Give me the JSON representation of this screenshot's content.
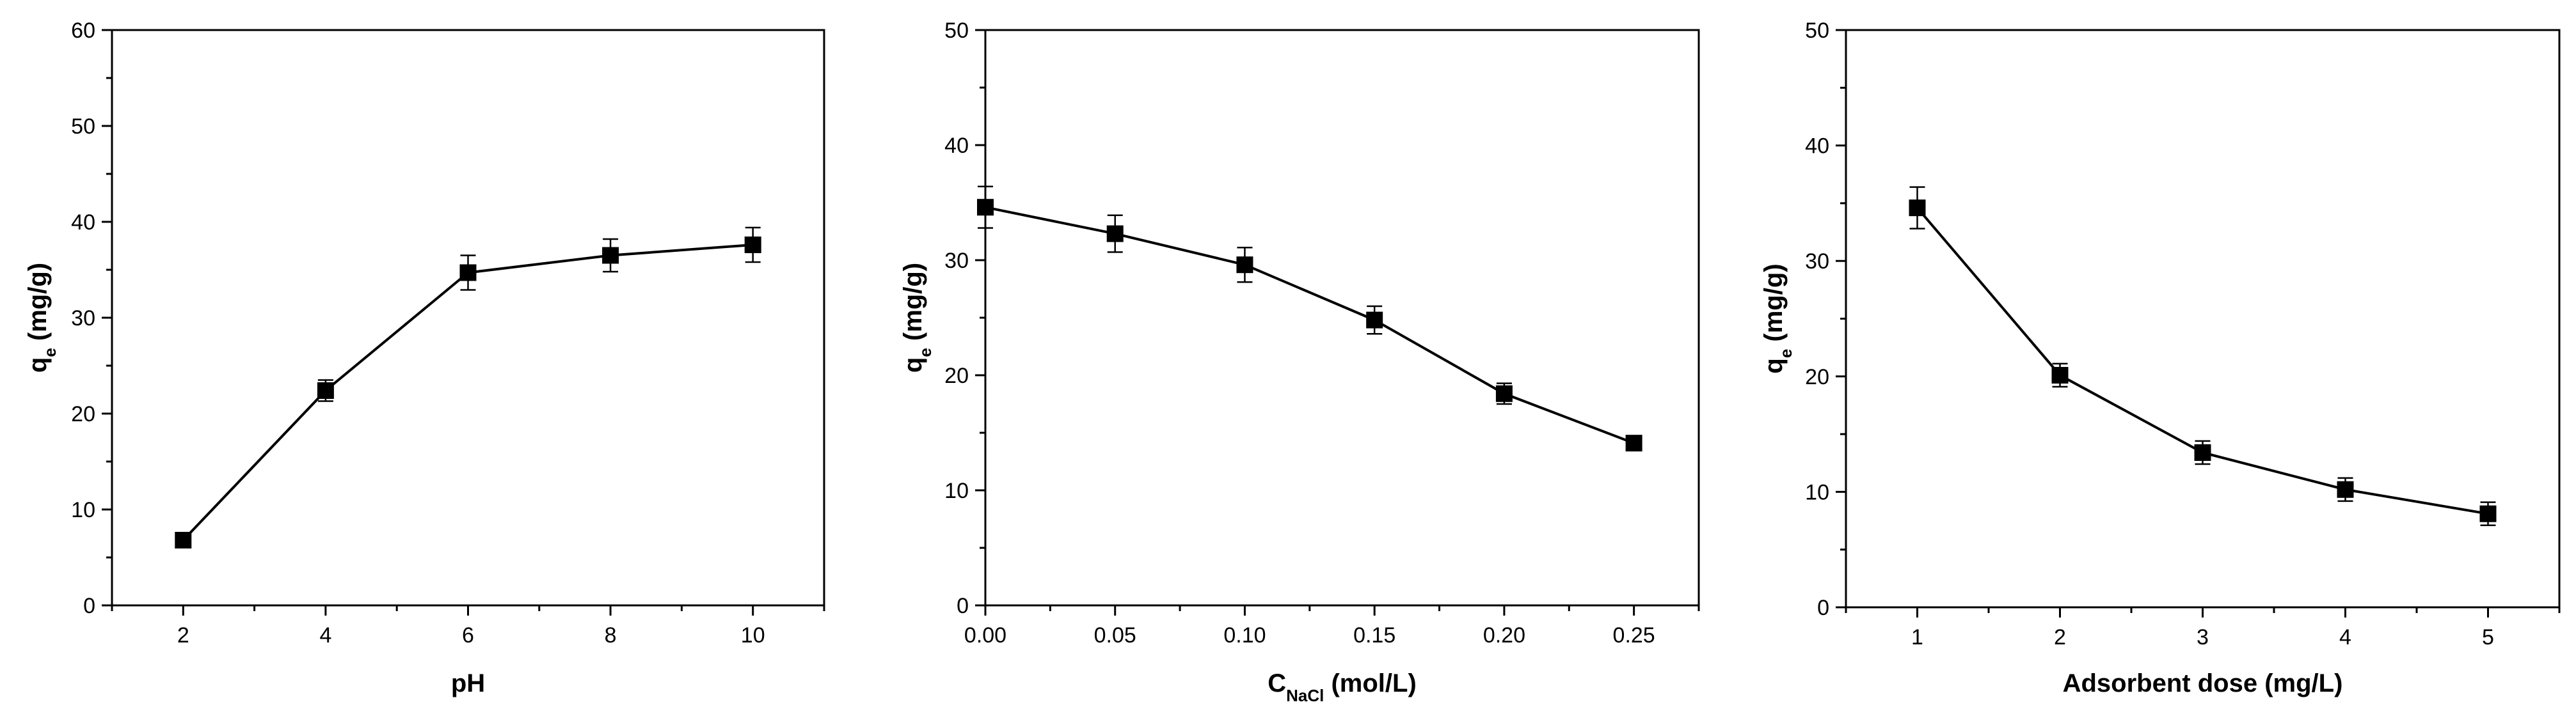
{
  "chart_data": [
    {
      "type": "line",
      "title": "",
      "xlabel": "pH",
      "ylabel": {
        "main": "q",
        "sub": "e",
        "rest": " (mg/g)"
      },
      "xlim": [
        1,
        11
      ],
      "ylim": [
        0,
        60
      ],
      "x_ticks": [
        2,
        4,
        6,
        8,
        10
      ],
      "x_tick_labels": [
        "2",
        "4",
        "6",
        "8",
        "10"
      ],
      "x_minor_ticks": [
        1,
        3,
        5,
        7,
        9,
        11
      ],
      "y_ticks": [
        0,
        10,
        20,
        30,
        40,
        50,
        60
      ],
      "y_tick_labels": [
        "0",
        "10",
        "20",
        "30",
        "40",
        "50",
        "60"
      ],
      "y_minor_ticks": [
        5,
        15,
        25,
        35,
        45,
        55
      ],
      "series": [
        {
          "name": "qe",
          "x": [
            2,
            4,
            6,
            8,
            10
          ],
          "values": [
            6.8,
            22.4,
            34.7,
            36.5,
            37.6
          ],
          "errors": [
            0.6,
            1.1,
            1.8,
            1.7,
            1.8
          ]
        }
      ]
    },
    {
      "type": "line",
      "title": "",
      "xlabel": {
        "main": "C",
        "sub": "NaCl",
        "rest": " (mol/L)"
      },
      "ylabel": {
        "main": "q",
        "sub": "e",
        "rest": " (mg/g)"
      },
      "xlim": [
        0,
        0.275
      ],
      "ylim": [
        0,
        50
      ],
      "x_ticks": [
        0,
        0.05,
        0.1,
        0.15,
        0.2,
        0.25
      ],
      "x_tick_labels": [
        "0.00",
        "0.05",
        "0.10",
        "0.15",
        "0.20",
        "0.25"
      ],
      "x_minor_ticks": [
        0.025,
        0.075,
        0.125,
        0.175,
        0.225,
        0.275
      ],
      "y_ticks": [
        0,
        10,
        20,
        30,
        40,
        50
      ],
      "y_tick_labels": [
        "0",
        "10",
        "20",
        "30",
        "40",
        "50"
      ],
      "y_minor_ticks": [
        5,
        15,
        25,
        35,
        45
      ],
      "series": [
        {
          "name": "qe",
          "x": [
            0,
            0.05,
            0.1,
            0.15,
            0.2,
            0.25
          ],
          "values": [
            34.6,
            32.3,
            29.6,
            24.8,
            18.4,
            14.1
          ],
          "errors": [
            1.8,
            1.6,
            1.5,
            1.2,
            0.9,
            0.6
          ]
        }
      ]
    },
    {
      "type": "line",
      "title": "",
      "xlabel": "Adsorbent dose (mg/L)",
      "ylabel": {
        "main": "q",
        "sub": "e",
        "rest": " (mg/g)"
      },
      "xlim": [
        0.5,
        5.5
      ],
      "ylim": [
        0,
        50
      ],
      "x_ticks": [
        1,
        2,
        3,
        4,
        5
      ],
      "x_tick_labels": [
        "1",
        "2",
        "3",
        "4",
        "5"
      ],
      "x_minor_ticks": [
        0.5,
        1.5,
        2.5,
        3.5,
        4.5,
        5.5
      ],
      "y_ticks": [
        0,
        10,
        20,
        30,
        40,
        50
      ],
      "y_tick_labels": [
        "0",
        "10",
        "20",
        "30",
        "40",
        "50"
      ],
      "y_minor_ticks": [
        5,
        15,
        25,
        35,
        45
      ],
      "series": [
        {
          "name": "qe",
          "x": [
            1,
            2,
            3,
            4,
            5
          ],
          "values": [
            34.6,
            20.1,
            13.4,
            10.2,
            8.1
          ],
          "errors": [
            1.8,
            1.0,
            1.0,
            1.0,
            1.0
          ]
        }
      ]
    }
  ]
}
